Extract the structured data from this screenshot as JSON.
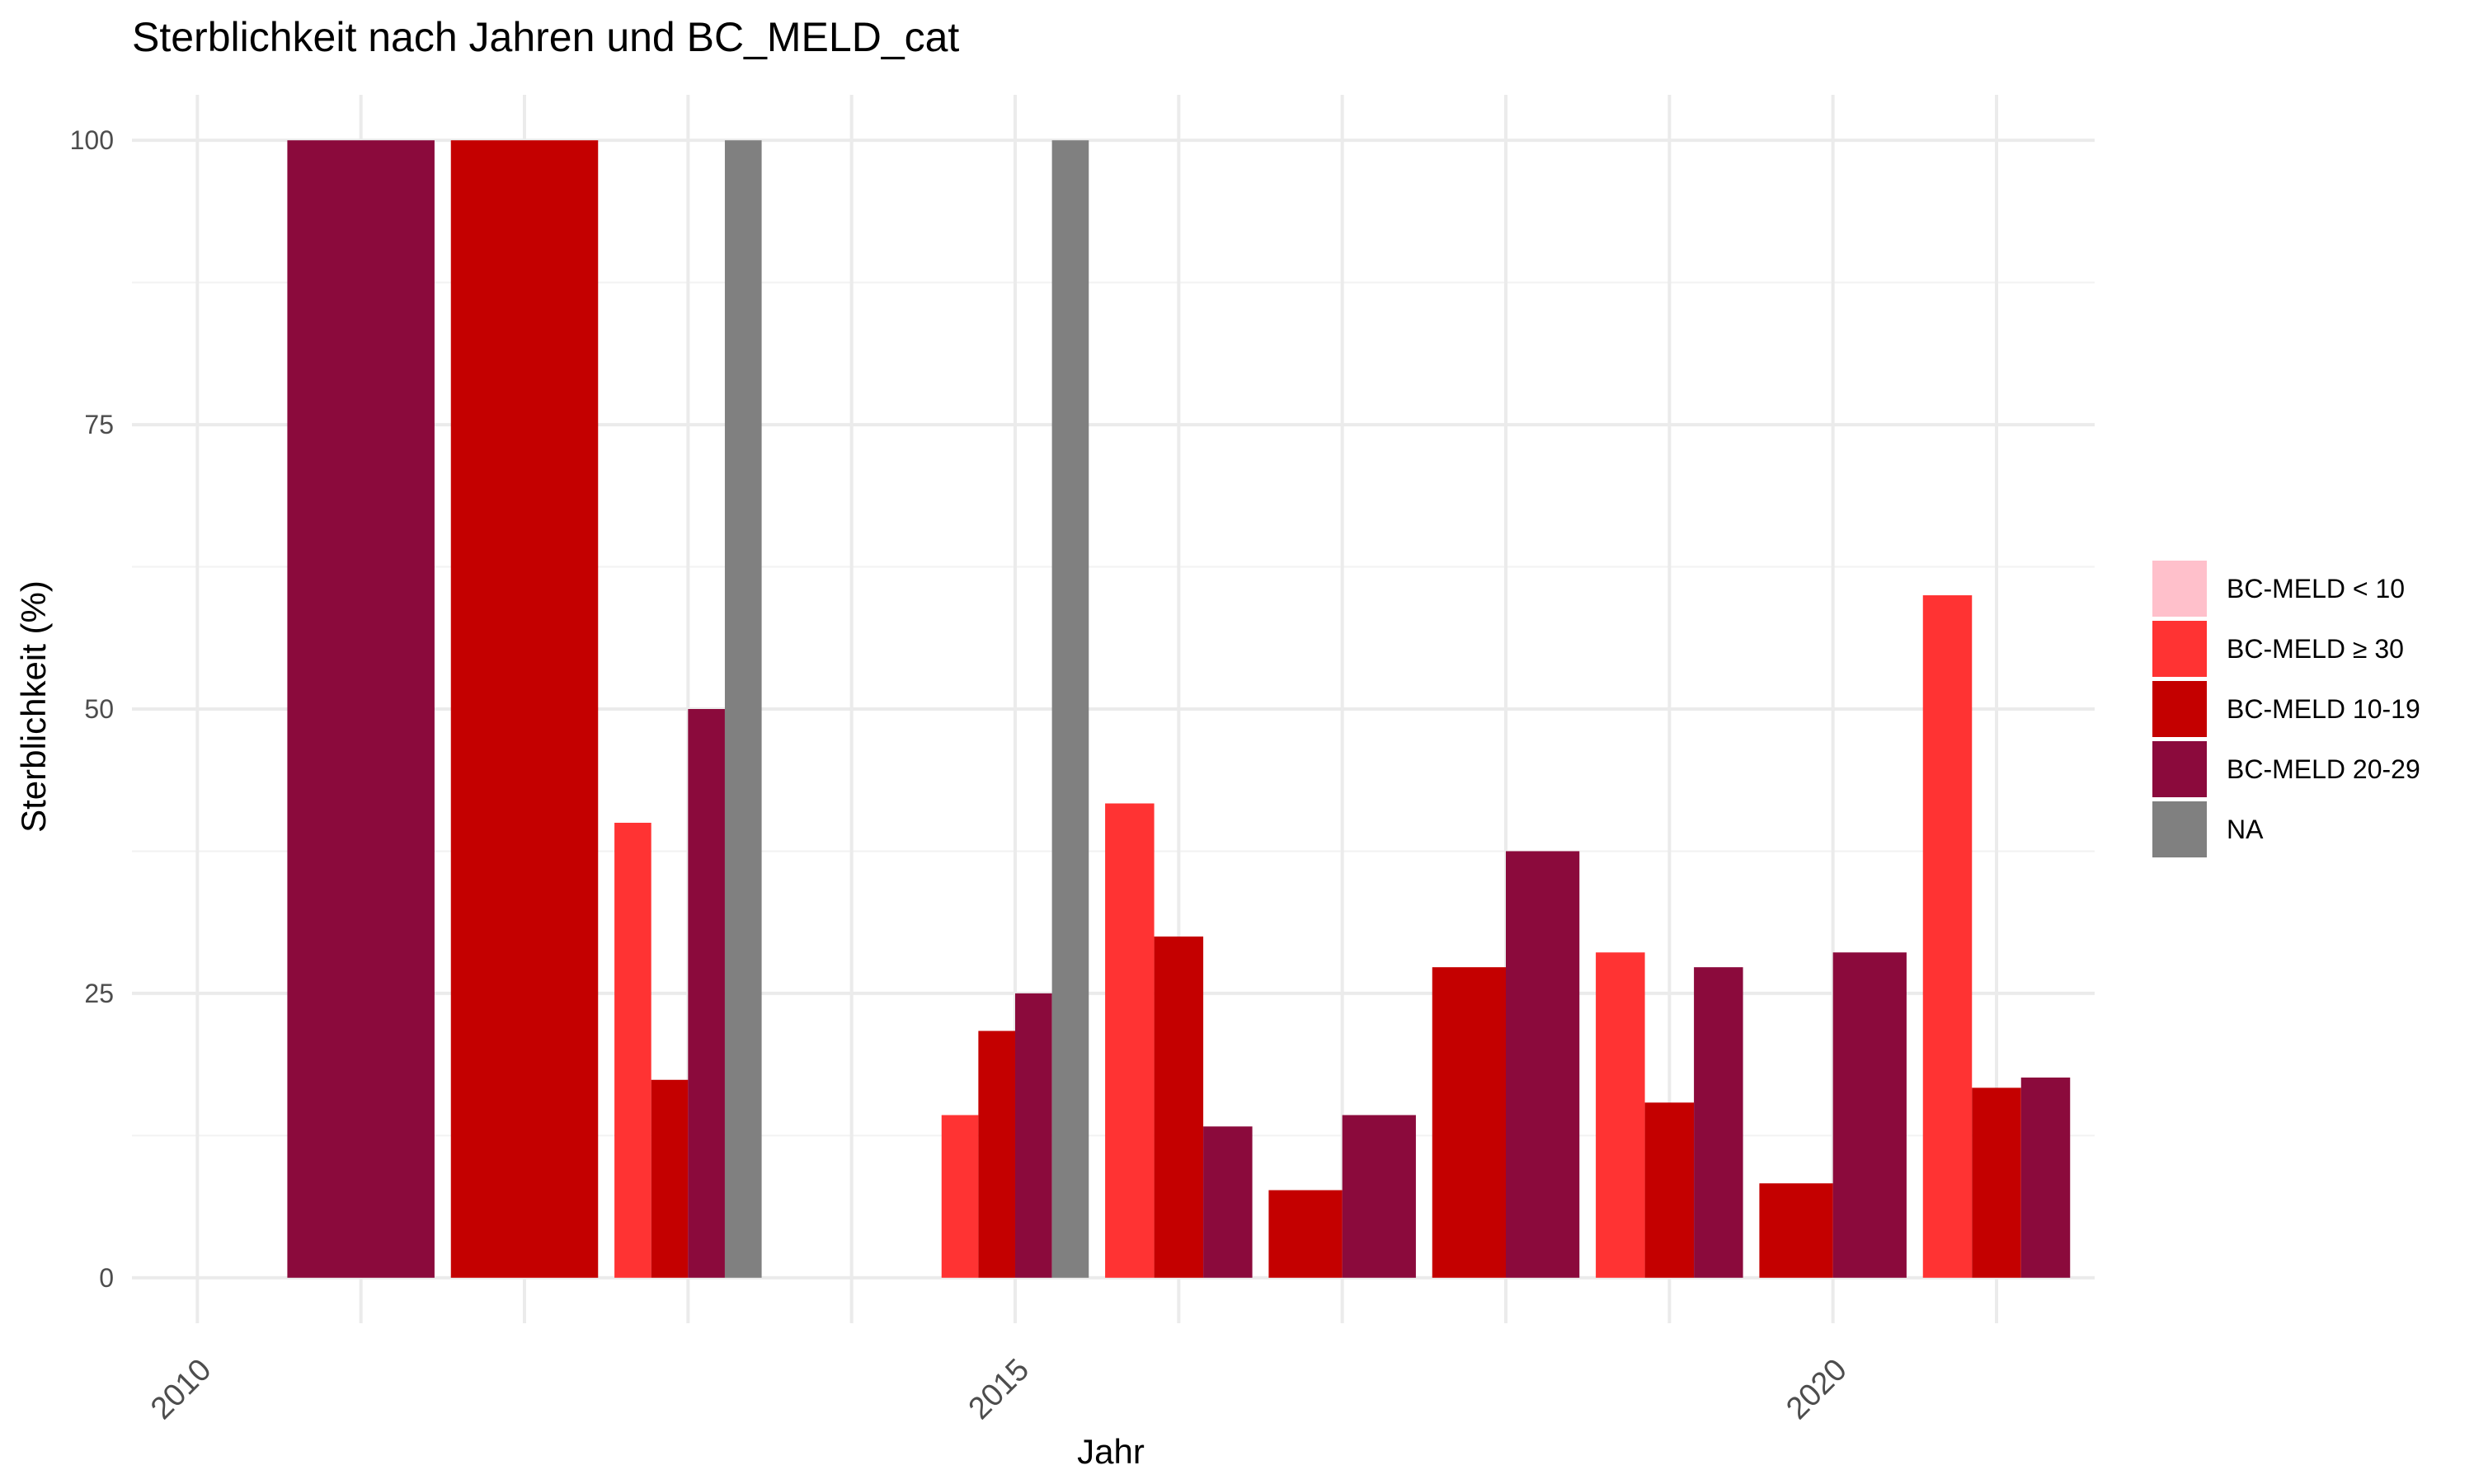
{
  "chart_data": {
    "type": "bar",
    "title": "Sterblichkeit nach Jahren und BC_MELD_cat",
    "xlabel": "Jahr",
    "ylabel": "Sterblichkeit (%)",
    "xlim": [
      2009.6,
      2021.6
    ],
    "ylim": [
      -4,
      104
    ],
    "x_ticks": [
      2010,
      2015,
      2020
    ],
    "y_ticks": [
      0,
      25,
      50,
      75,
      100
    ],
    "grid": true,
    "legend_position": "right",
    "legend": [
      {
        "label": "BC-MELD < 10",
        "color": "#FFC0CB"
      },
      {
        "label": "BC-MELD ≥ 30",
        "color": "#FF3333"
      },
      {
        "label": "BC-MELD 10-19",
        "color": "#C40000"
      },
      {
        "label": "BC-MELD 20-29",
        "color": "#8B0A3C"
      },
      {
        "label": "NA",
        "color": "#808080"
      }
    ],
    "bars": [
      {
        "year": 2011,
        "series": "BC-MELD 20-29",
        "value": 100
      },
      {
        "year": 2012,
        "series": "BC-MELD 10-19",
        "value": 100
      },
      {
        "year": 2013,
        "series": "BC-MELD ≥ 30",
        "value": 40
      },
      {
        "year": 2013,
        "series": "BC-MELD 10-19",
        "value": 17.4
      },
      {
        "year": 2013,
        "series": "BC-MELD 20-29",
        "value": 50
      },
      {
        "year": 2013,
        "series": "NA",
        "value": 100
      },
      {
        "year": 2015,
        "series": "BC-MELD ≥ 30",
        "value": 14.3
      },
      {
        "year": 2015,
        "series": "BC-MELD 10-19",
        "value": 21.7
      },
      {
        "year": 2015,
        "series": "BC-MELD 20-29",
        "value": 25
      },
      {
        "year": 2015,
        "series": "NA",
        "value": 100
      },
      {
        "year": 2016,
        "series": "BC-MELD ≥ 30",
        "value": 41.7
      },
      {
        "year": 2016,
        "series": "BC-MELD 10-19",
        "value": 30
      },
      {
        "year": 2016,
        "series": "BC-MELD 20-29",
        "value": 13.3
      },
      {
        "year": 2017,
        "series": "BC-MELD 10-19",
        "value": 7.7
      },
      {
        "year": 2017,
        "series": "BC-MELD 20-29",
        "value": 14.3
      },
      {
        "year": 2018,
        "series": "BC-MELD 10-19",
        "value": 27.3
      },
      {
        "year": 2018,
        "series": "BC-MELD 20-29",
        "value": 37.5
      },
      {
        "year": 2019,
        "series": "BC-MELD ≥ 30",
        "value": 28.6
      },
      {
        "year": 2019,
        "series": "BC-MELD 10-19",
        "value": 15.4
      },
      {
        "year": 2019,
        "series": "BC-MELD 20-29",
        "value": 27.3
      },
      {
        "year": 2020,
        "series": "BC-MELD 10-19",
        "value": 8.3
      },
      {
        "year": 2020,
        "series": "BC-MELD 20-29",
        "value": 28.6
      },
      {
        "year": 2021,
        "series": "BC-MELD ≥ 30",
        "value": 60
      },
      {
        "year": 2021,
        "series": "BC-MELD 10-19",
        "value": 16.7
      },
      {
        "year": 2021,
        "series": "BC-MELD 20-29",
        "value": 17.6
      }
    ]
  }
}
